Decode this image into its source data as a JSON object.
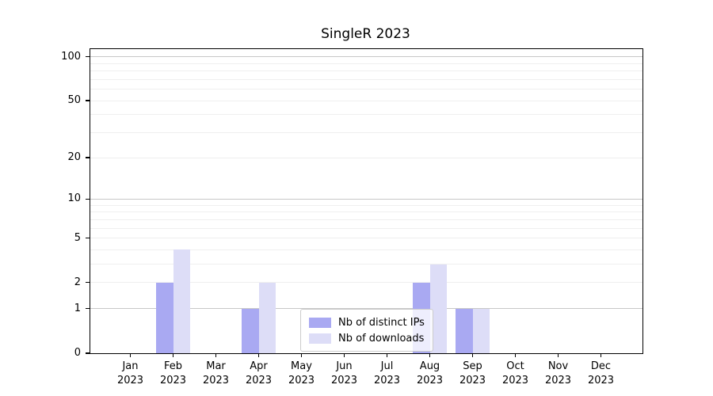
{
  "title": "SingleR 2023",
  "chart_data": {
    "type": "bar",
    "title": "SingleR 2023",
    "categories": [
      "Jan 2023",
      "Feb 2023",
      "Mar 2023",
      "Apr 2023",
      "May 2023",
      "Jun 2023",
      "Jul 2023",
      "Aug 2023",
      "Sep 2023",
      "Oct 2023",
      "Nov 2023",
      "Dec 2023"
    ],
    "series": [
      {
        "name": "Nb of distinct IPs",
        "color": "#a9a9f2",
        "values": [
          0,
          2,
          0,
          1,
          0,
          0,
          0,
          2,
          1,
          0,
          0,
          0
        ]
      },
      {
        "name": "Nb of downloads",
        "color": "#ddddf7",
        "values": [
          0,
          4,
          0,
          2,
          0,
          0,
          0,
          3,
          1,
          0,
          0,
          0
        ]
      }
    ],
    "y_scale": "log10(1+y)",
    "ylim": [
      0,
      112
    ],
    "y_ticks": [
      0,
      1,
      2,
      5,
      10,
      20,
      50,
      100
    ],
    "grid": {
      "orientation": "horizontal",
      "major_values": [
        1,
        10,
        100
      ],
      "minor_values": [
        2,
        3,
        4,
        5,
        6,
        7,
        8,
        9,
        20,
        30,
        40,
        50,
        60,
        70,
        80,
        90
      ],
      "major_color": "#c7c7c7",
      "minor_color": "#efefef"
    },
    "legend_position": "lower center",
    "xlabel": "",
    "ylabel": ""
  },
  "colors": {
    "background": "#ffffff",
    "spine": "#000000",
    "text": "#000000",
    "legend_border": "#cccccc"
  }
}
